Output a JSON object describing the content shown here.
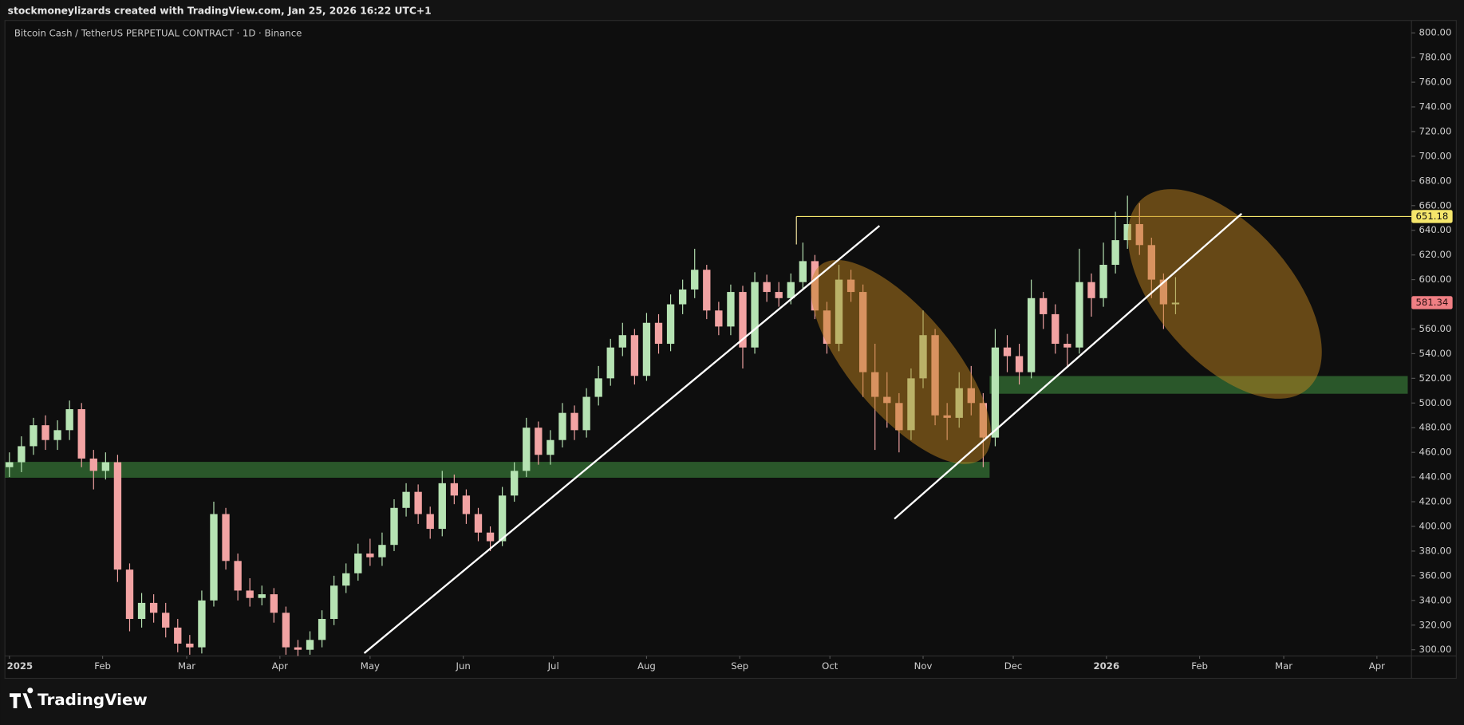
{
  "header": {
    "attribution": "stockmoneylizards created with TradingView.com, Jan 25, 2026 16:22 UTC+1"
  },
  "footer": {
    "brand": "TradingView"
  },
  "chart_data": {
    "type": "candlestick",
    "title": "Bitcoin Cash / TetherUS PERPETUAL CONTRACT · 1D · Binance",
    "up_color": "#b6e3b3",
    "down_color": "#f2a3a3",
    "price_line": 651.18,
    "price_line_color": "#f5e66b",
    "last_price_color": "#f07f84",
    "xlim": [
      -1.5,
      466.5
    ],
    "xticks": [
      {
        "value": 0,
        "label": "2025"
      },
      {
        "value": 31,
        "label": "Feb"
      },
      {
        "value": 59,
        "label": "Mar"
      },
      {
        "value": 90,
        "label": "Apr"
      },
      {
        "value": 120,
        "label": "May"
      },
      {
        "value": 151,
        "label": "Jun"
      },
      {
        "value": 181,
        "label": "Jul"
      },
      {
        "value": 212,
        "label": "Aug"
      },
      {
        "value": 243,
        "label": "Sep"
      },
      {
        "value": 273,
        "label": "Oct"
      },
      {
        "value": 304,
        "label": "Nov"
      },
      {
        "value": 334,
        "label": "Dec"
      },
      {
        "value": 365,
        "label": "2026"
      },
      {
        "value": 396,
        "label": "Feb"
      },
      {
        "value": 424,
        "label": "Mar"
      },
      {
        "value": 455,
        "label": "Apr"
      }
    ],
    "ylim": [
      295,
      810
    ],
    "yticks": [
      {
        "value": 300,
        "label": "300.00"
      },
      {
        "value": 320,
        "label": "320.00"
      },
      {
        "value": 340,
        "label": "340.00"
      },
      {
        "value": 360,
        "label": "360.00"
      },
      {
        "value": 380,
        "label": "380.00"
      },
      {
        "value": 400,
        "label": "400.00"
      },
      {
        "value": 420,
        "label": "420.00"
      },
      {
        "value": 440,
        "label": "440.00"
      },
      {
        "value": 460,
        "label": "460.00"
      },
      {
        "value": 480,
        "label": "480.00"
      },
      {
        "value": 500,
        "label": "500.00"
      },
      {
        "value": 520,
        "label": "520.00"
      },
      {
        "value": 540,
        "label": "540.00"
      },
      {
        "value": 560,
        "label": "560.00"
      },
      {
        "value": 580,
        "label": "580.00"
      },
      {
        "value": 600,
        "label": "600.00"
      },
      {
        "value": 620,
        "label": "620.00"
      },
      {
        "value": 640,
        "label": "640.00"
      },
      {
        "value": 660,
        "label": "660.00"
      },
      {
        "value": 680,
        "label": "680.00"
      },
      {
        "value": 700,
        "label": "700.00"
      },
      {
        "value": 720,
        "label": "720.00"
      },
      {
        "value": 740,
        "label": "740.00"
      },
      {
        "value": 760,
        "label": "760.00"
      },
      {
        "value": 780,
        "label": "780.00"
      },
      {
        "value": 800,
        "label": "800.00"
      }
    ],
    "x": [
      0,
      4,
      8,
      12,
      16,
      20,
      24,
      28,
      32,
      36,
      40,
      44,
      48,
      52,
      56,
      60,
      64,
      68,
      72,
      76,
      80,
      84,
      88,
      92,
      96,
      100,
      104,
      108,
      112,
      116,
      120,
      124,
      128,
      132,
      136,
      140,
      144,
      148,
      152,
      156,
      160,
      164,
      168,
      172,
      176,
      180,
      184,
      188,
      192,
      196,
      200,
      204,
      208,
      212,
      216,
      220,
      224,
      228,
      232,
      236,
      240,
      244,
      248,
      252,
      256,
      260,
      264,
      268,
      272,
      276,
      280,
      284,
      288,
      292,
      296,
      300,
      304,
      308,
      312,
      316,
      320,
      324,
      328,
      332,
      336,
      340,
      344,
      348,
      352,
      356,
      360,
      364,
      368,
      372,
      376,
      380,
      384,
      388
    ],
    "open": [
      448,
      452,
      465,
      482,
      470,
      478,
      495,
      455,
      445,
      452,
      365,
      325,
      338,
      330,
      318,
      305,
      302,
      340,
      410,
      372,
      348,
      342,
      345,
      330,
      302,
      300,
      308,
      325,
      352,
      362,
      378,
      375,
      385,
      415,
      428,
      410,
      398,
      435,
      425,
      410,
      395,
      388,
      425,
      445,
      480,
      458,
      470,
      492,
      478,
      505,
      520,
      545,
      555,
      522,
      565,
      548,
      580,
      592,
      608,
      575,
      562,
      590,
      545,
      598,
      590,
      585,
      598,
      615,
      575,
      548,
      600,
      590,
      525,
      505,
      500,
      478,
      520,
      555,
      490,
      488,
      512,
      500,
      472,
      545,
      538,
      525,
      585,
      572,
      548,
      545,
      598,
      585,
      612,
      632,
      645,
      628,
      600,
      580
    ],
    "high": [
      460,
      473,
      488,
      490,
      486,
      502,
      500,
      462,
      460,
      458,
      370,
      346,
      345,
      338,
      325,
      312,
      348,
      420,
      415,
      378,
      358,
      352,
      350,
      335,
      308,
      315,
      332,
      360,
      370,
      386,
      390,
      395,
      422,
      435,
      434,
      416,
      445,
      442,
      430,
      415,
      400,
      432,
      452,
      488,
      485,
      478,
      500,
      498,
      512,
      530,
      552,
      565,
      560,
      573,
      572,
      588,
      600,
      625,
      612,
      582,
      596,
      595,
      606,
      604,
      598,
      605,
      630,
      620,
      582,
      612,
      608,
      596,
      548,
      525,
      508,
      528,
      575,
      560,
      500,
      525,
      530,
      508,
      560,
      555,
      548,
      600,
      590,
      580,
      556,
      625,
      605,
      630,
      655,
      668,
      662,
      634,
      605,
      602
    ],
    "low": [
      440,
      444,
      458,
      462,
      462,
      470,
      448,
      430,
      438,
      355,
      315,
      318,
      322,
      310,
      298,
      296,
      297,
      335,
      365,
      340,
      335,
      336,
      322,
      296,
      295,
      296,
      302,
      320,
      346,
      356,
      368,
      368,
      380,
      408,
      402,
      390,
      392,
      418,
      402,
      388,
      380,
      384,
      420,
      440,
      450,
      450,
      464,
      470,
      472,
      498,
      514,
      538,
      515,
      518,
      540,
      542,
      572,
      585,
      568,
      555,
      555,
      528,
      540,
      582,
      578,
      580,
      592,
      568,
      540,
      542,
      582,
      505,
      462,
      480,
      460,
      470,
      512,
      482,
      470,
      480,
      490,
      448,
      465,
      525,
      515,
      520,
      560,
      540,
      530,
      540,
      570,
      578,
      605,
      625,
      620,
      585,
      560,
      572
    ],
    "close": [
      452,
      465,
      482,
      470,
      478,
      495,
      455,
      445,
      452,
      365,
      325,
      338,
      330,
      318,
      305,
      302,
      340,
      410,
      372,
      348,
      342,
      345,
      330,
      302,
      300,
      308,
      325,
      352,
      362,
      378,
      375,
      385,
      415,
      428,
      410,
      398,
      435,
      425,
      410,
      395,
      388,
      425,
      445,
      480,
      458,
      470,
      492,
      478,
      505,
      520,
      545,
      555,
      522,
      565,
      548,
      580,
      592,
      608,
      575,
      562,
      590,
      545,
      598,
      590,
      585,
      598,
      615,
      575,
      548,
      600,
      590,
      525,
      505,
      500,
      478,
      520,
      555,
      490,
      488,
      512,
      500,
      472,
      545,
      538,
      525,
      585,
      572,
      548,
      545,
      598,
      585,
      612,
      632,
      645,
      628,
      600,
      580,
      581.34
    ]
  }
}
